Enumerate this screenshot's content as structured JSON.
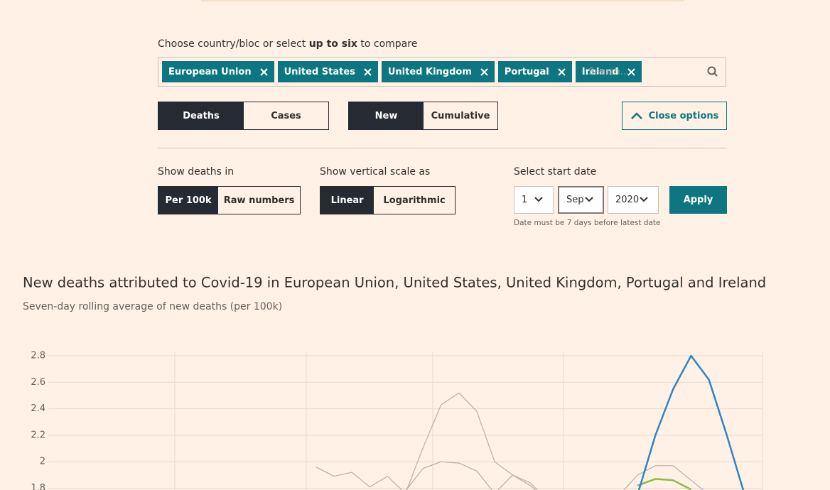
{
  "controls": {
    "prompt": {
      "before": "Choose country/bloc or select",
      "bold": "up to six",
      "after": "to compare"
    },
    "tags": [
      "European Union",
      "United States",
      "United Kingdom",
      "Portugal",
      "Ireland"
    ],
    "search_placeholder": "Search...",
    "metric": [
      "Deaths",
      "Cases"
    ],
    "mode": [
      "New",
      "Cumulative"
    ],
    "close_options": "Close options",
    "show_deaths_in": {
      "label": "Show deaths in",
      "options": [
        "Per 100k",
        "Raw numbers"
      ]
    },
    "vertical_scale": {
      "label": "Show vertical scale as",
      "options": [
        "Linear",
        "Logarithmic"
      ]
    },
    "start_date": {
      "label": "Select start date",
      "day": "1",
      "month": "Sep",
      "year": "2020",
      "apply": "Apply",
      "hint": "Date must be 7 days before latest date"
    }
  },
  "chart_data": {
    "type": "line",
    "title": "New deaths attributed to Covid-19 in European Union, United States, United Kingdom, Portugal and Ireland",
    "subtitle": "Seven-day rolling average of new deaths (per 100k)",
    "ylim": [
      1.8,
      2.8
    ],
    "yticks": [
      2.8,
      2.6,
      2.4,
      2.2,
      2.0,
      1.8
    ],
    "grid": true,
    "series": [
      {
        "color": "#b8aea5",
        "values": [
          null,
          null,
          null,
          null,
          null,
          null,
          null,
          null,
          null,
          null,
          null,
          null,
          null,
          null,
          null,
          1.96,
          1.89,
          1.92,
          1.81,
          1.89,
          1.76,
          2.11,
          2.43,
          2.52,
          2.38,
          2.0,
          1.9,
          1.84,
          1.7,
          null,
          null,
          null,
          1.75,
          1.9,
          1.97,
          1.97,
          1.86,
          1.75,
          null,
          null,
          null
        ]
      },
      {
        "color": "#b8aea5",
        "values": [
          null,
          null,
          null,
          null,
          null,
          null,
          null,
          null,
          null,
          null,
          null,
          null,
          null,
          null,
          null,
          null,
          null,
          null,
          null,
          null,
          1.78,
          1.95,
          2.0,
          1.99,
          1.93,
          1.76,
          1.9,
          1.82,
          1.7,
          null,
          null,
          null,
          null,
          null,
          null,
          null,
          null,
          null,
          null,
          null,
          null
        ]
      },
      {
        "color": "#8dba4a",
        "values": [
          null,
          null,
          null,
          null,
          null,
          null,
          null,
          null,
          null,
          null,
          null,
          null,
          null,
          null,
          null,
          null,
          null,
          null,
          null,
          null,
          null,
          null,
          null,
          null,
          null,
          null,
          null,
          null,
          null,
          null,
          null,
          null,
          null,
          1.82,
          1.87,
          1.86,
          1.79,
          null,
          null,
          null,
          null
        ]
      },
      {
        "color": "#2e86c8",
        "values": [
          null,
          null,
          null,
          null,
          null,
          null,
          null,
          null,
          null,
          null,
          null,
          null,
          null,
          null,
          null,
          null,
          null,
          null,
          null,
          null,
          null,
          null,
          null,
          null,
          null,
          null,
          null,
          null,
          null,
          null,
          null,
          null,
          null,
          1.75,
          2.2,
          2.55,
          2.8,
          2.62,
          2.2,
          1.75,
          null
        ]
      }
    ]
  }
}
